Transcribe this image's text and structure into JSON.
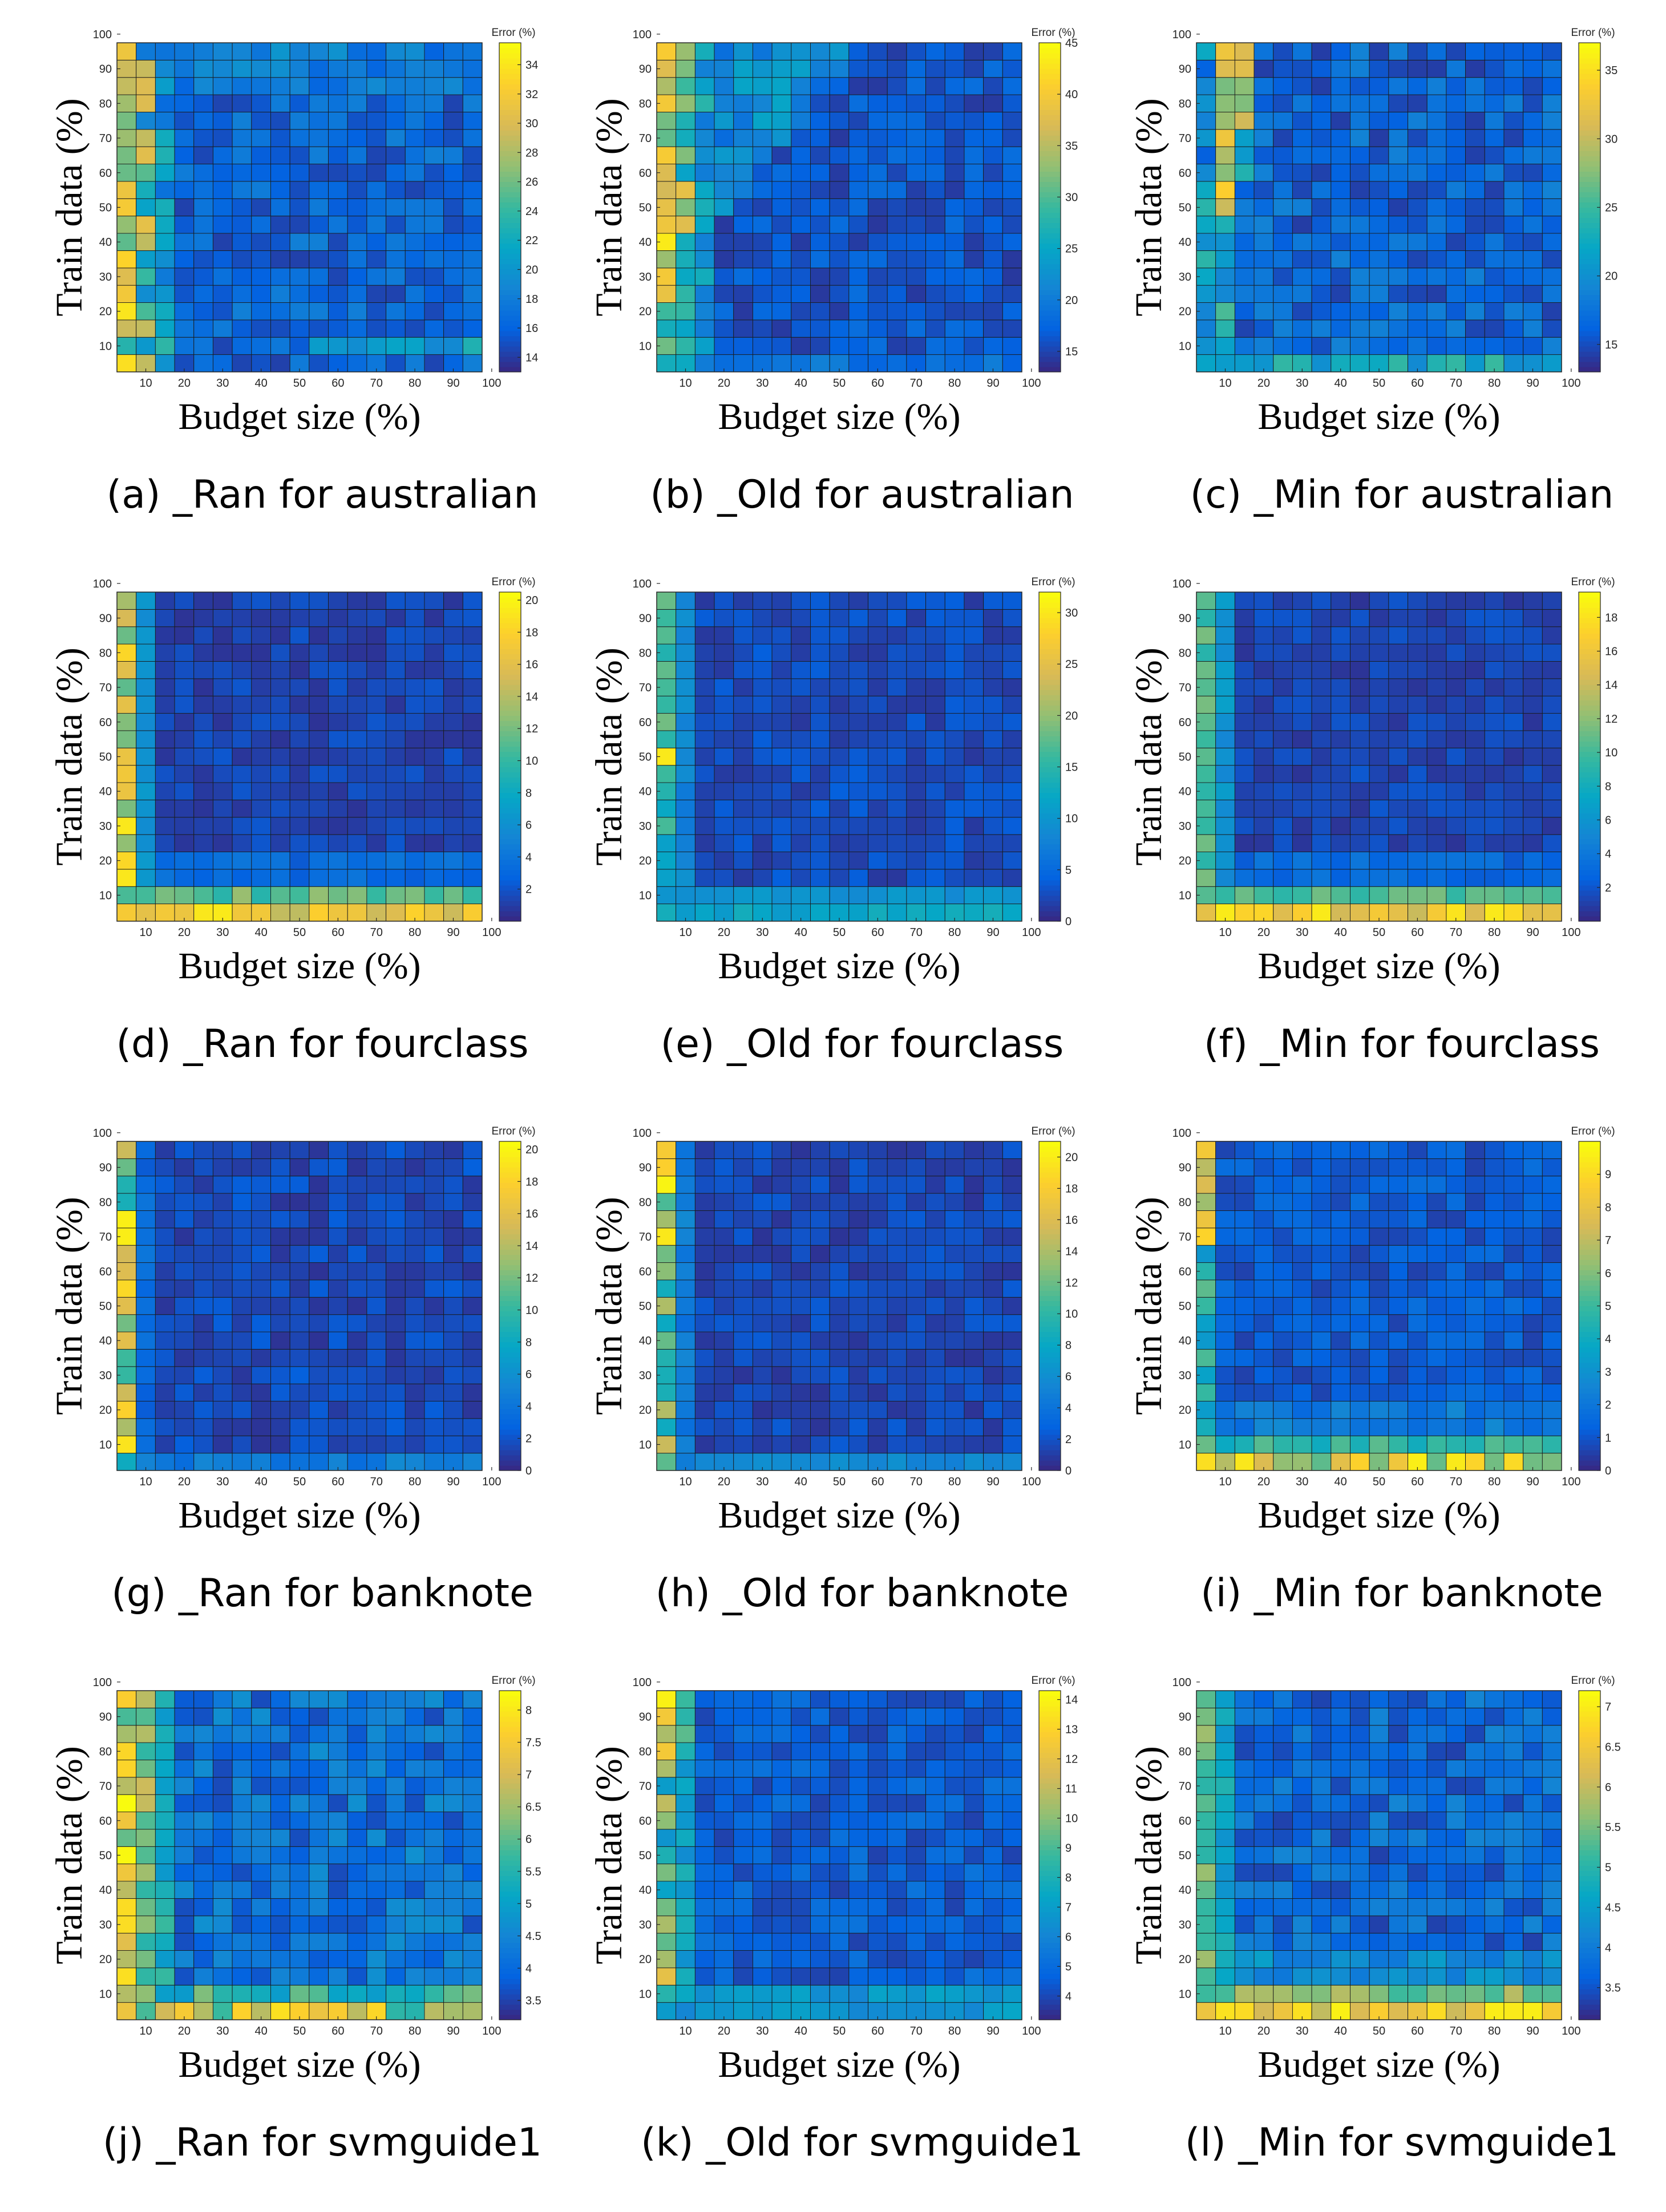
{
  "figure": {
    "x_axis_label": "Budget size (%)",
    "y_axis_label": "Train data (%)",
    "colorbar_label": "Error (%)",
    "x_tick_labels": [
      "10",
      "20",
      "30",
      "40",
      "50",
      "60",
      "70",
      "80",
      "90",
      "100"
    ],
    "y_tick_labels": [
      "10",
      "20",
      "30",
      "40",
      "50",
      "60",
      "70",
      "80",
      "90",
      "100"
    ],
    "colormap": "parula",
    "colormap_stops": [
      "#352a87",
      "#0363e1",
      "#1485d4",
      "#06a7c6",
      "#38b99e",
      "#92bf73",
      "#d9ba56",
      "#fcce2e",
      "#f9fb0e"
    ]
  },
  "chart_data": [
    {
      "type": "heatmap",
      "caption": "(a) _Ran for australian",
      "clim": [
        13,
        35.5
      ],
      "colorbar_ticks": [
        "14",
        "16",
        "18",
        "20",
        "22",
        "24",
        "26",
        "28",
        "30",
        "32",
        "34"
      ],
      "profile": "ran_aus",
      "seed": 11
    },
    {
      "type": "heatmap",
      "caption": "(b) _Old for australian",
      "clim": [
        13,
        45
      ],
      "colorbar_ticks": [
        "15",
        "20",
        "25",
        "30",
        "35",
        "40",
        "45"
      ],
      "profile": "old_aus",
      "seed": 23
    },
    {
      "type": "heatmap",
      "caption": "(c) _Min for australian",
      "clim": [
        13,
        37
      ],
      "colorbar_ticks": [
        "15",
        "20",
        "25",
        "30",
        "35"
      ],
      "profile": "min_aus",
      "seed": 37
    },
    {
      "type": "heatmap",
      "caption": "(d) _Ran for fourclass",
      "clim": [
        0,
        20.5
      ],
      "colorbar_ticks": [
        "2",
        "4",
        "6",
        "8",
        "10",
        "12",
        "14",
        "16",
        "18",
        "20"
      ],
      "profile": "ran_four",
      "seed": 41
    },
    {
      "type": "heatmap",
      "caption": "(e) _Old for fourclass",
      "clim": [
        0,
        32
      ],
      "colorbar_ticks": [
        "0",
        "5",
        "10",
        "15",
        "20",
        "25",
        "30"
      ],
      "profile": "old_four",
      "seed": 53
    },
    {
      "type": "heatmap",
      "caption": "(f) _Min for fourclass",
      "clim": [
        0,
        19.5
      ],
      "colorbar_ticks": [
        "2",
        "4",
        "6",
        "8",
        "10",
        "12",
        "14",
        "16",
        "18"
      ],
      "profile": "min_four",
      "seed": 67
    },
    {
      "type": "heatmap",
      "caption": "(g) _Ran for banknote",
      "clim": [
        0,
        20.5
      ],
      "colorbar_ticks": [
        "0",
        "2",
        "4",
        "6",
        "8",
        "10",
        "12",
        "14",
        "16",
        "18",
        "20"
      ],
      "profile": "ran_bank",
      "seed": 71
    },
    {
      "type": "heatmap",
      "caption": "(h) _Old for banknote",
      "clim": [
        0,
        21
      ],
      "colorbar_ticks": [
        "0",
        "2",
        "4",
        "6",
        "8",
        "10",
        "12",
        "14",
        "16",
        "18",
        "20"
      ],
      "profile": "old_bank",
      "seed": 83
    },
    {
      "type": "heatmap",
      "caption": "(i) _Min for banknote",
      "clim": [
        0,
        10
      ],
      "colorbar_ticks": [
        "0",
        "1",
        "2",
        "3",
        "4",
        "5",
        "6",
        "7",
        "8",
        "9"
      ],
      "profile": "min_bank",
      "seed": 97
    },
    {
      "type": "heatmap",
      "caption": "(j) _Ran for svmguide1",
      "clim": [
        3.2,
        8.3
      ],
      "colorbar_ticks": [
        "3.5",
        "4",
        "4.5",
        "5",
        "5.5",
        "6",
        "6.5",
        "7",
        "7.5",
        "8"
      ],
      "profile": "ran_svm",
      "seed": 101
    },
    {
      "type": "heatmap",
      "caption": "(k) _Old for svmguide1",
      "clim": [
        3.2,
        14.3
      ],
      "colorbar_ticks": [
        "4",
        "5",
        "6",
        "7",
        "8",
        "9",
        "10",
        "11",
        "12",
        "13",
        "14"
      ],
      "profile": "old_svm",
      "seed": 113
    },
    {
      "type": "heatmap",
      "caption": "(l) _Min for svmguide1",
      "clim": [
        3.1,
        7.2
      ],
      "colorbar_ticks": [
        "3.5",
        "4",
        "4.5",
        "5",
        "5.5",
        "6",
        "6.5",
        "7"
      ],
      "profile": "min_svm",
      "seed": 127
    }
  ]
}
